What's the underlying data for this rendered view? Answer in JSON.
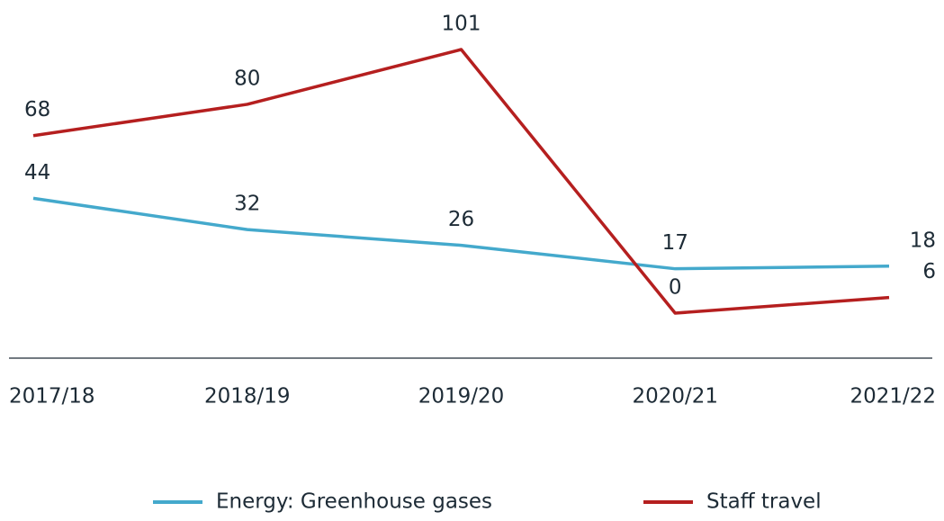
{
  "chart_data": {
    "type": "line",
    "categories": [
      "2017/18",
      "2018/19",
      "2019/20",
      "2020/21",
      "2021/22"
    ],
    "series": [
      {
        "name": "Energy: Greenhouse gases",
        "color": "#44a9cc",
        "values": [
          44,
          32,
          26,
          17,
          18
        ]
      },
      {
        "name": "Staff travel",
        "color": "#b51f1f",
        "values": [
          68,
          80,
          101,
          0,
          6
        ]
      }
    ],
    "legend": "bottom"
  }
}
